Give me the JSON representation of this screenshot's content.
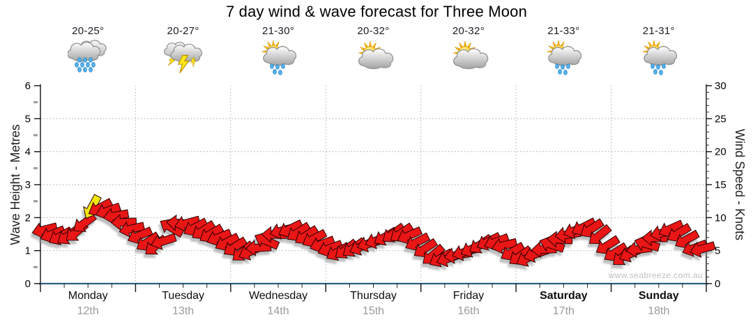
{
  "title": "7 day wind & wave forecast for Three Moon",
  "watermark": "www.seabreeze.com.au",
  "days": [
    {
      "name": "Monday",
      "date": "12th",
      "temp": "20-25°",
      "icon": "rain",
      "bold": false
    },
    {
      "name": "Tuesday",
      "date": "13th",
      "temp": "20-27°",
      "icon": "storm",
      "bold": false
    },
    {
      "name": "Wednesday",
      "date": "14th",
      "temp": "21-30°",
      "icon": "sun-cloud-rain",
      "bold": false
    },
    {
      "name": "Thursday",
      "date": "15th",
      "temp": "20-32°",
      "icon": "sun-cloud",
      "bold": false
    },
    {
      "name": "Friday",
      "date": "16th",
      "temp": "20-32°",
      "icon": "sun-cloud",
      "bold": false
    },
    {
      "name": "Saturday",
      "date": "17th",
      "temp": "21-33°",
      "icon": "sun-cloud-rain",
      "bold": true
    },
    {
      "name": "Sunday",
      "date": "18th",
      "temp": "21-31°",
      "icon": "sun-cloud-rain",
      "bold": true
    }
  ],
  "chart_data": {
    "type": "wind-direction-arrows",
    "title": "7 day wind & wave forecast for Three Moon",
    "left_axis": {
      "label": "Wave Height - Metres",
      "min": 0,
      "max": 6,
      "ticks": [
        0,
        1,
        2,
        3,
        4,
        5,
        6
      ]
    },
    "right_axis": {
      "label": "Wind Speed - Knots",
      "min": 0,
      "max": 30,
      "ticks": [
        0,
        5,
        10,
        15,
        20,
        25,
        30
      ]
    },
    "x_axis": {
      "categories": [
        "Monday 12th",
        "Tuesday 13th",
        "Wednesday 14th",
        "Thursday 15th",
        "Friday 16th",
        "Saturday 17th",
        "Sunday 18th"
      ],
      "day_gridlines": true
    },
    "grid": {
      "horizontal_dotted_at": [
        1,
        2,
        3,
        4,
        5
      ],
      "color": "#ababab"
    },
    "series": [
      {
        "name": "Wind speed & direction",
        "style": "block-arrows",
        "sample_interval_hours": 3,
        "wind_knots": [
          8.5,
          7.5,
          7.0,
          7.8,
          9.8,
          11.5,
          10.8,
          9.3,
          7.8,
          6.3,
          5.4,
          8.5,
          9.5,
          8.5,
          7.8,
          7.0,
          5.9,
          4.8,
          4.9,
          6.5,
          7.9,
          8.3,
          7.5,
          6.8,
          5.6,
          4.8,
          5.3,
          5.6,
          6.3,
          7.1,
          7.8,
          7.3,
          5.8,
          4.3,
          3.6,
          4.3,
          5.0,
          5.9,
          6.6,
          5.8,
          4.3,
          3.9,
          4.8,
          5.9,
          7.1,
          8.1,
          8.8,
          7.3,
          5.0,
          4.1,
          4.8,
          6.0,
          7.4,
          8.3,
          7.3,
          5.4,
          5.2
        ],
        "direction_deg": [
          170,
          158,
          148,
          140,
          146,
          152,
          166,
          178,
          162,
          147,
          138,
          210,
          172,
          152,
          144,
          158,
          150,
          140,
          162,
          204,
          170,
          154,
          144,
          152,
          164,
          150,
          140,
          156,
          166,
          150,
          141,
          156,
          151,
          140,
          156,
          170,
          160,
          146,
          156,
          166,
          142,
          152,
          166,
          198,
          176,
          160,
          150,
          141,
          152,
          141,
          162,
          196,
          172,
          156,
          146,
          160,
          166
        ],
        "arrow_color": "#ea1212",
        "arrow_outline": "#2b0000",
        "highlight_arrow": {
          "hour": 13,
          "color": "#f2e60a",
          "offset_kn": 1.2,
          "direction_deg": 118
        }
      },
      {
        "name": "Wave height",
        "style": "line",
        "color": "#2d5f7f",
        "flat_value_m": 0
      }
    ],
    "legend": false
  }
}
